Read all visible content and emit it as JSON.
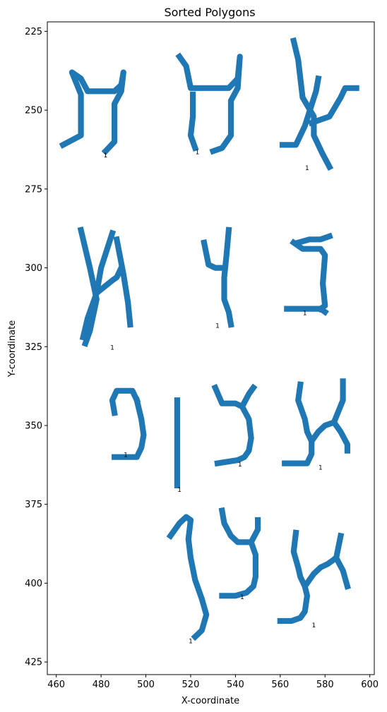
{
  "chart_data": {
    "type": "scatter",
    "title": "Sorted Polygons",
    "xlabel": "X-coordinate",
    "ylabel": "Y-coordinate",
    "xlim": [
      456,
      602
    ],
    "ylim": [
      429,
      222
    ],
    "y_inverted": true,
    "grid": false,
    "x_ticks": [
      460,
      480,
      500,
      520,
      540,
      560,
      580,
      600
    ],
    "y_ticks": [
      225,
      250,
      275,
      300,
      325,
      350,
      375,
      400,
      425
    ],
    "fill_color": "#1f77b4",
    "polygons": [
      {
        "label": "1",
        "label_pos": [
          482,
          265
        ],
        "strokes": [
          [
            [
              463,
              261
            ],
            [
              471,
              258
            ],
            [
              471,
              245
            ],
            [
              467,
              238
            ],
            [
              471,
              240
            ],
            [
              474,
              244
            ],
            [
              486,
              244
            ],
            [
              489,
              242
            ],
            [
              490,
              238
            ],
            [
              489,
              244
            ],
            [
              486,
              248
            ],
            [
              486,
              260
            ],
            [
              482,
              263
            ]
          ]
        ]
      },
      {
        "label": "1",
        "label_pos": [
          523,
          264
        ],
        "strokes": [
          [
            [
              515,
              233
            ],
            [
              518,
              236
            ],
            [
              520,
              243
            ],
            [
              537,
              243
            ],
            [
              541,
              240
            ],
            [
              542,
              233
            ],
            [
              541,
              243
            ],
            [
              538,
              247
            ],
            [
              538,
              258
            ],
            [
              534,
              262
            ],
            [
              530,
              263
            ]
          ],
          [
            [
              521,
              245
            ],
            [
              521,
              252
            ],
            [
              520,
              258
            ],
            [
              522,
              262
            ]
          ]
        ]
      },
      {
        "label": "1",
        "label_pos": [
          572,
          269
        ],
        "strokes": [
          [
            [
              561,
              261
            ],
            [
              567,
              261
            ],
            [
              571,
              255
            ],
            [
              576,
              244
            ],
            [
              577,
              240
            ]
          ],
          [
            [
              566,
              228
            ],
            [
              568,
              234
            ],
            [
              570,
              246
            ],
            [
              575,
              252
            ],
            [
              575,
              258
            ],
            [
              579,
              264
            ],
            [
              582,
              268
            ]
          ],
          [
            [
              574,
              254
            ],
            [
              582,
              252
            ],
            [
              587,
              246
            ],
            [
              589,
              243
            ],
            [
              594,
              243
            ]
          ]
        ]
      },
      {
        "label": "1",
        "label_pos": [
          485,
          326
        ],
        "strokes": [
          [
            [
              471,
              288
            ],
            [
              475,
              300
            ],
            [
              478,
              310
            ],
            [
              475,
              320
            ],
            [
              473,
              324
            ]
          ],
          [
            [
              485,
              289
            ],
            [
              480,
              300
            ],
            [
              478,
              308
            ],
            [
              485,
              304
            ],
            [
              487,
              303
            ],
            [
              489,
              300
            ]
          ],
          [
            [
              478,
              308
            ],
            [
              474,
              316
            ],
            [
              472,
              322
            ]
          ],
          [
            [
              487,
              291
            ],
            [
              490,
              302
            ],
            [
              492,
              311
            ],
            [
              493,
              318
            ]
          ]
        ]
      },
      {
        "label": "1",
        "label_pos": [
          532,
          319
        ],
        "strokes": [
          [
            [
              526,
              292
            ],
            [
              528,
              299
            ],
            [
              531,
              300
            ],
            [
              534,
              300
            ]
          ],
          [
            [
              537,
              288
            ],
            [
              536,
              296
            ],
            [
              535,
              303
            ],
            [
              535,
              310
            ],
            [
              537,
              314
            ],
            [
              538,
              318
            ]
          ]
        ]
      },
      {
        "label": "1",
        "label_pos": [
          571,
          315
        ],
        "strokes": [
          [
            [
              568,
              292
            ],
            [
              573,
              291
            ],
            [
              578,
              291
            ],
            [
              582,
              290
            ]
          ],
          [
            [
              566,
              292
            ],
            [
              570,
              294
            ],
            [
              578,
              294
            ],
            [
              580,
              296
            ],
            [
              579,
              305
            ],
            [
              580,
              312
            ],
            [
              578,
              313
            ]
          ],
          [
            [
              563,
              313
            ],
            [
              578,
              313
            ],
            [
              580,
              314
            ]
          ]
        ]
      },
      {
        "label": "1",
        "label_pos": [
          491,
          360
        ],
        "strokes": [
          [
            [
              486,
              346
            ],
            [
              485,
              342
            ],
            [
              487,
              339
            ],
            [
              494,
              339
            ],
            [
              496,
              342
            ]
          ],
          [
            [
              496,
              342
            ],
            [
              498,
              348
            ],
            [
              499,
              353
            ],
            [
              498,
              357
            ],
            [
              496,
              360
            ],
            [
              491,
              360
            ],
            [
              486,
              360
            ]
          ]
        ]
      },
      {
        "label": "1",
        "label_pos": [
          515,
          371
        ],
        "strokes": [
          [
            [
              514,
              342
            ],
            [
              514,
              354
            ],
            [
              514,
              364
            ],
            [
              514,
              369
            ]
          ]
        ]
      },
      {
        "label": "1",
        "label_pos": [
          542,
          363
        ],
        "strokes": [
          [
            [
              531,
              338
            ],
            [
              534,
              343
            ],
            [
              540,
              343
            ],
            [
              543,
              344
            ],
            [
              546,
              340
            ],
            [
              548,
              338
            ]
          ],
          [
            [
              543,
              344
            ],
            [
              546,
              348
            ],
            [
              547,
              354
            ],
            [
              546,
              358
            ],
            [
              544,
              360
            ],
            [
              541,
              361
            ],
            [
              532,
              362
            ]
          ]
        ]
      },
      {
        "label": "1",
        "label_pos": [
          578,
          364
        ],
        "strokes": [
          [
            [
              569,
              337
            ],
            [
              568,
              342
            ],
            [
              571,
              348
            ],
            [
              572,
              352
            ],
            [
              574,
              355
            ],
            [
              577,
              352
            ],
            [
              580,
              350
            ],
            [
              584,
              349
            ],
            [
              588,
              342
            ],
            [
              588,
              336
            ]
          ],
          [
            [
              574,
              355
            ],
            [
              574,
              359
            ],
            [
              572,
              362
            ],
            [
              567,
              362
            ],
            [
              562,
              362
            ]
          ],
          [
            [
              584,
              349
            ],
            [
              587,
              352
            ],
            [
              590,
              356
            ],
            [
              590,
              358
            ]
          ]
        ]
      },
      {
        "label": "1",
        "label_pos": [
          520,
          419
        ],
        "strokes": [
          [
            [
              511,
              385
            ],
            [
              515,
              381
            ],
            [
              518,
              379
            ],
            [
              520,
              380
            ],
            [
              519,
              386
            ],
            [
              520,
              392
            ],
            [
              522,
              399
            ],
            [
              525,
              405
            ],
            [
              527,
              410
            ],
            [
              525,
              415
            ],
            [
              522,
              417
            ]
          ]
        ]
      },
      {
        "label": "1",
        "label_pos": [
          543,
          405
        ],
        "strokes": [
          [
            [
              534,
              377
            ],
            [
              535,
              381
            ],
            [
              538,
              385
            ],
            [
              541,
              387
            ],
            [
              547,
              387
            ],
            [
              550,
              383
            ],
            [
              550,
              380
            ]
          ],
          [
            [
              547,
              387
            ],
            [
              549,
              391
            ],
            [
              549,
              398
            ],
            [
              548,
              401
            ],
            [
              545,
              403
            ],
            [
              540,
              404
            ],
            [
              534,
              404
            ]
          ]
        ]
      },
      {
        "label": "1",
        "label_pos": [
          575,
          414
        ],
        "strokes": [
          [
            [
              567,
              384
            ],
            [
              566,
              390
            ],
            [
              568,
              395
            ],
            [
              569,
              398
            ],
            [
              571,
              401
            ],
            [
              575,
              397
            ],
            [
              578,
              395
            ],
            [
              581,
              394
            ],
            [
              585,
              392
            ],
            [
              587,
              385
            ]
          ],
          [
            [
              571,
              401
            ],
            [
              572,
              404
            ],
            [
              571,
              409
            ],
            [
              569,
              411
            ],
            [
              565,
              412
            ],
            [
              560,
              412
            ]
          ],
          [
            [
              585,
              392
            ],
            [
              588,
              396
            ],
            [
              590,
              401
            ]
          ]
        ]
      }
    ]
  }
}
